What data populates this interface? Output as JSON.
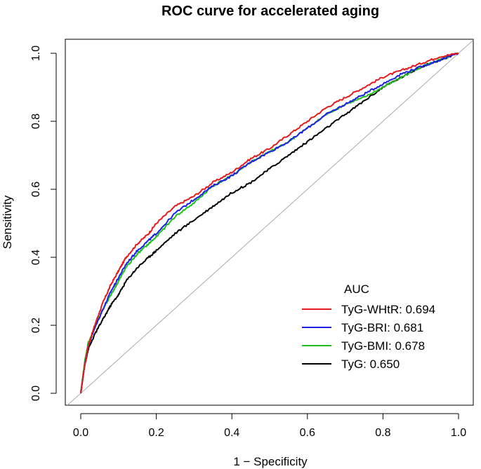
{
  "chart_data": {
    "type": "line",
    "title": "ROC curve for accelerated aging",
    "xlabel": "1 − Specificity",
    "ylabel": "Sensitivity",
    "xlim": [
      0.0,
      1.0
    ],
    "ylim": [
      0.0,
      1.0
    ],
    "x_ticks": [
      "0.0",
      "0.2",
      "0.4",
      "0.6",
      "0.8",
      "1.0"
    ],
    "y_ticks": [
      "0.0",
      "0.2",
      "0.4",
      "0.6",
      "0.8",
      "1.0"
    ],
    "diagonal_reference": true,
    "legend": {
      "title": "AUC",
      "position": "bottom-right"
    },
    "series": [
      {
        "name": "TyG-WHtR: 0.694",
        "color": "#e41a1c",
        "points": [
          [
            0,
            0
          ],
          [
            0.01,
            0.08
          ],
          [
            0.02,
            0.14
          ],
          [
            0.04,
            0.21
          ],
          [
            0.06,
            0.27
          ],
          [
            0.08,
            0.32
          ],
          [
            0.1,
            0.36
          ],
          [
            0.12,
            0.4
          ],
          [
            0.15,
            0.44
          ],
          [
            0.18,
            0.47
          ],
          [
            0.2,
            0.5
          ],
          [
            0.25,
            0.55
          ],
          [
            0.3,
            0.58
          ],
          [
            0.35,
            0.62
          ],
          [
            0.4,
            0.65
          ],
          [
            0.45,
            0.69
          ],
          [
            0.5,
            0.72
          ],
          [
            0.55,
            0.76
          ],
          [
            0.6,
            0.8
          ],
          [
            0.65,
            0.84
          ],
          [
            0.7,
            0.87
          ],
          [
            0.75,
            0.9
          ],
          [
            0.8,
            0.93
          ],
          [
            0.85,
            0.95
          ],
          [
            0.9,
            0.97
          ],
          [
            0.95,
            0.99
          ],
          [
            1.0,
            1.0
          ]
        ]
      },
      {
        "name": "TyG-BRI: 0.681",
        "color": "#1f1fe6",
        "points": [
          [
            0,
            0
          ],
          [
            0.01,
            0.08
          ],
          [
            0.02,
            0.14
          ],
          [
            0.04,
            0.2
          ],
          [
            0.06,
            0.25
          ],
          [
            0.08,
            0.3
          ],
          [
            0.1,
            0.34
          ],
          [
            0.12,
            0.38
          ],
          [
            0.15,
            0.42
          ],
          [
            0.18,
            0.45
          ],
          [
            0.2,
            0.47
          ],
          [
            0.25,
            0.53
          ],
          [
            0.3,
            0.57
          ],
          [
            0.35,
            0.61
          ],
          [
            0.4,
            0.64
          ],
          [
            0.45,
            0.68
          ],
          [
            0.5,
            0.71
          ],
          [
            0.55,
            0.74
          ],
          [
            0.6,
            0.78
          ],
          [
            0.65,
            0.82
          ],
          [
            0.7,
            0.85
          ],
          [
            0.75,
            0.88
          ],
          [
            0.8,
            0.91
          ],
          [
            0.85,
            0.94
          ],
          [
            0.9,
            0.96
          ],
          [
            0.95,
            0.98
          ],
          [
            1.0,
            1.0
          ]
        ]
      },
      {
        "name": "TyG-BMI: 0.678",
        "color": "#1fbf1f",
        "points": [
          [
            0,
            0
          ],
          [
            0.01,
            0.09
          ],
          [
            0.02,
            0.15
          ],
          [
            0.04,
            0.2
          ],
          [
            0.06,
            0.25
          ],
          [
            0.08,
            0.29
          ],
          [
            0.1,
            0.33
          ],
          [
            0.12,
            0.37
          ],
          [
            0.15,
            0.41
          ],
          [
            0.18,
            0.44
          ],
          [
            0.2,
            0.46
          ],
          [
            0.25,
            0.52
          ],
          [
            0.3,
            0.56
          ],
          [
            0.35,
            0.61
          ],
          [
            0.4,
            0.64
          ],
          [
            0.45,
            0.68
          ],
          [
            0.5,
            0.71
          ],
          [
            0.55,
            0.74
          ],
          [
            0.6,
            0.78
          ],
          [
            0.65,
            0.82
          ],
          [
            0.7,
            0.85
          ],
          [
            0.75,
            0.87
          ],
          [
            0.8,
            0.9
          ],
          [
            0.85,
            0.93
          ],
          [
            0.9,
            0.96
          ],
          [
            0.95,
            0.98
          ],
          [
            1.0,
            1.0
          ]
        ]
      },
      {
        "name": "TyG: 0.650",
        "color": "#000000",
        "points": [
          [
            0,
            0
          ],
          [
            0.01,
            0.08
          ],
          [
            0.02,
            0.13
          ],
          [
            0.04,
            0.18
          ],
          [
            0.06,
            0.22
          ],
          [
            0.08,
            0.26
          ],
          [
            0.1,
            0.29
          ],
          [
            0.12,
            0.33
          ],
          [
            0.15,
            0.37
          ],
          [
            0.18,
            0.4
          ],
          [
            0.2,
            0.42
          ],
          [
            0.25,
            0.47
          ],
          [
            0.3,
            0.51
          ],
          [
            0.35,
            0.55
          ],
          [
            0.4,
            0.59
          ],
          [
            0.45,
            0.62
          ],
          [
            0.5,
            0.66
          ],
          [
            0.55,
            0.7
          ],
          [
            0.6,
            0.74
          ],
          [
            0.65,
            0.78
          ],
          [
            0.7,
            0.82
          ],
          [
            0.75,
            0.86
          ],
          [
            0.8,
            0.9
          ],
          [
            0.85,
            0.93
          ],
          [
            0.9,
            0.96
          ],
          [
            0.95,
            0.98
          ],
          [
            1.0,
            1.0
          ]
        ]
      }
    ]
  }
}
